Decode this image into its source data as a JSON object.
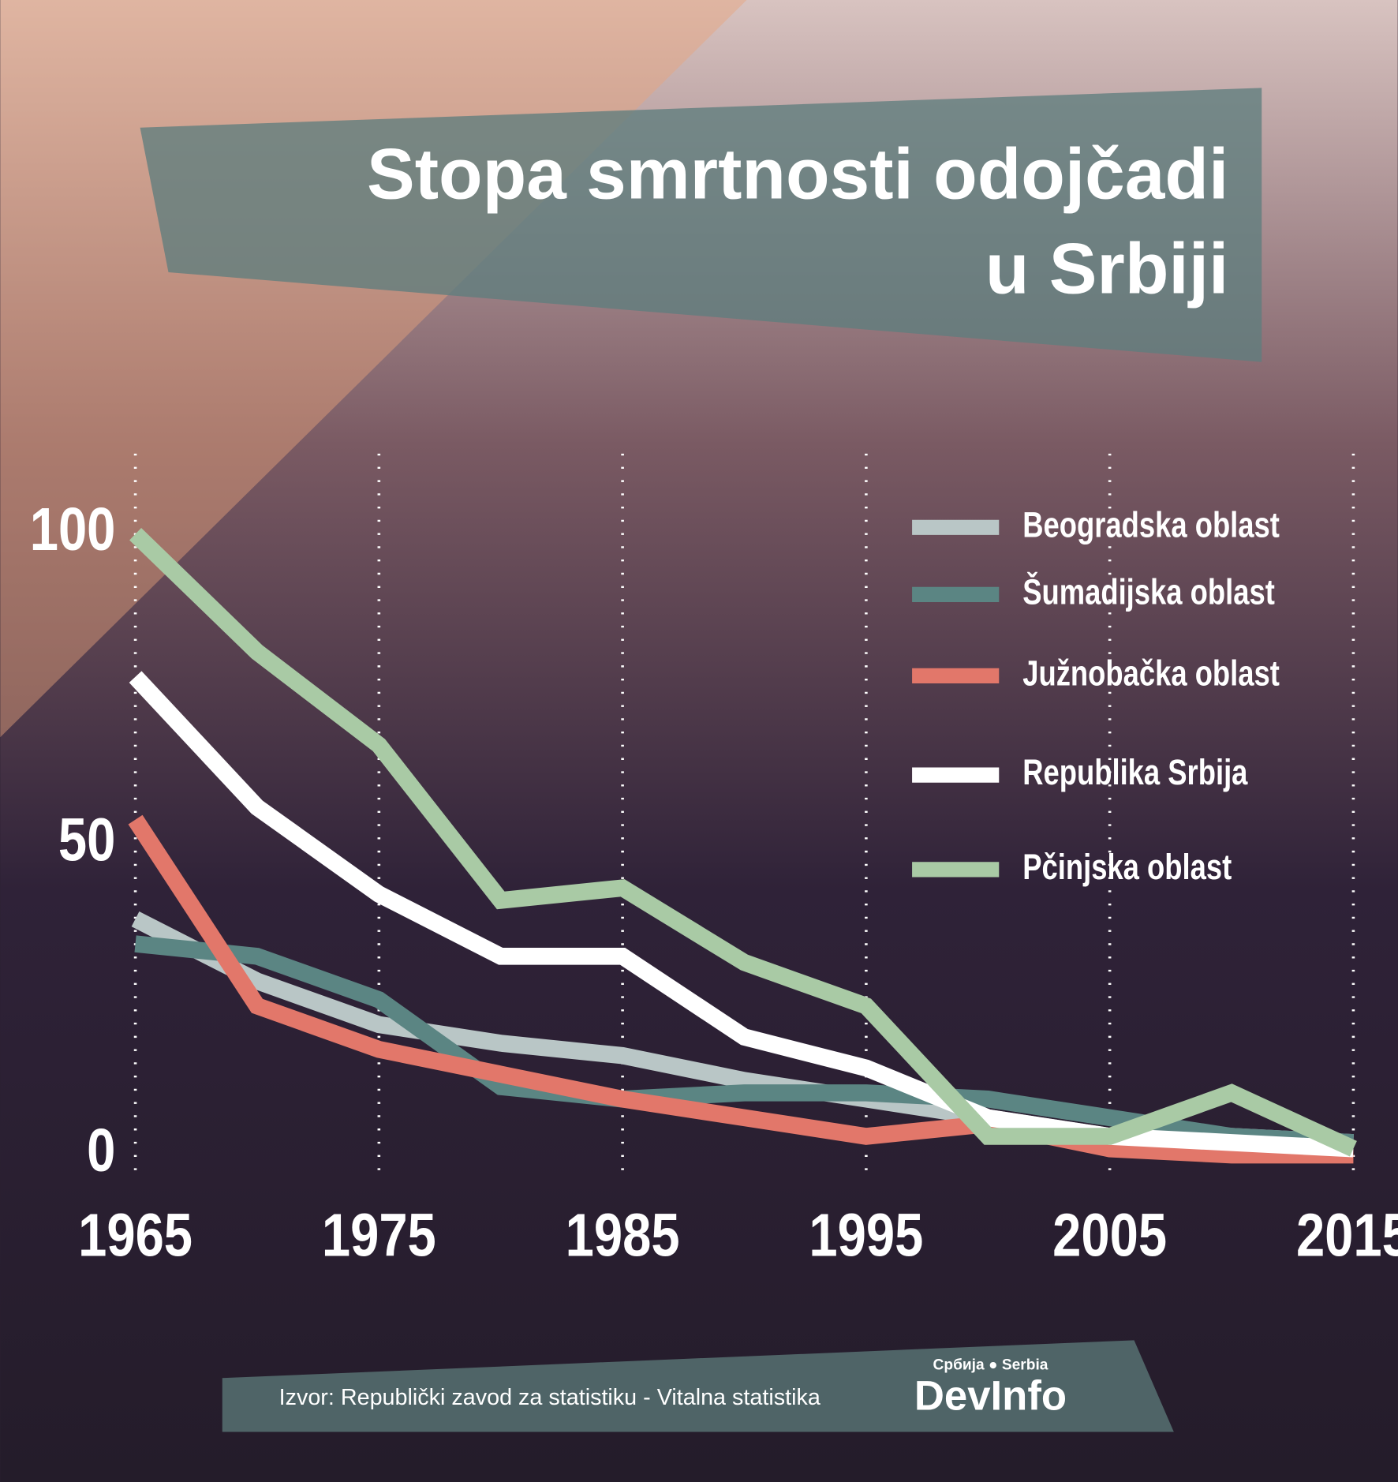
{
  "chart_data": {
    "type": "line",
    "title": [
      "Stopa smrtnosti odojčadi",
      "u Srbiji"
    ],
    "x": [
      1965,
      1970,
      1975,
      1980,
      1985,
      1990,
      1995,
      2000,
      2005,
      2010,
      2015
    ],
    "xlim": [
      1965,
      2015
    ],
    "xticks": [
      1965,
      1975,
      1985,
      1995,
      2005,
      2015
    ],
    "ylim": [
      0,
      100
    ],
    "yticks": [
      0,
      50,
      100
    ],
    "series": [
      {
        "name": "Beogradska oblast",
        "color": "#b9c6c6",
        "values": [
          38,
          28,
          21,
          18,
          16,
          12,
          9,
          6,
          3,
          3,
          2
        ]
      },
      {
        "name": "Šumadijska oblast",
        "color": "#5b8583",
        "values": [
          34,
          32,
          25,
          11,
          9,
          10,
          10,
          9,
          6,
          3,
          2
        ]
      },
      {
        "name": "Južnobačka oblast",
        "color": "#e2776a",
        "values": [
          54,
          24,
          17,
          13,
          9,
          6,
          3,
          5,
          1,
          0,
          0
        ]
      },
      {
        "name": "Republika Srbija",
        "color": "#ffffff",
        "values": [
          77,
          56,
          42,
          32,
          32,
          19,
          14,
          6,
          3,
          2,
          1
        ]
      },
      {
        "name": "Pčinjska oblast",
        "color": "#a9caa5",
        "values": [
          100,
          81,
          66,
          41,
          43,
          31,
          24,
          3,
          3,
          10,
          1
        ]
      }
    ]
  },
  "footer": {
    "source": "Izvor: Republički zavod za statistiku - Vitalna statistika",
    "logo_top": "Србија ● Serbia",
    "logo": "DevInfo"
  }
}
